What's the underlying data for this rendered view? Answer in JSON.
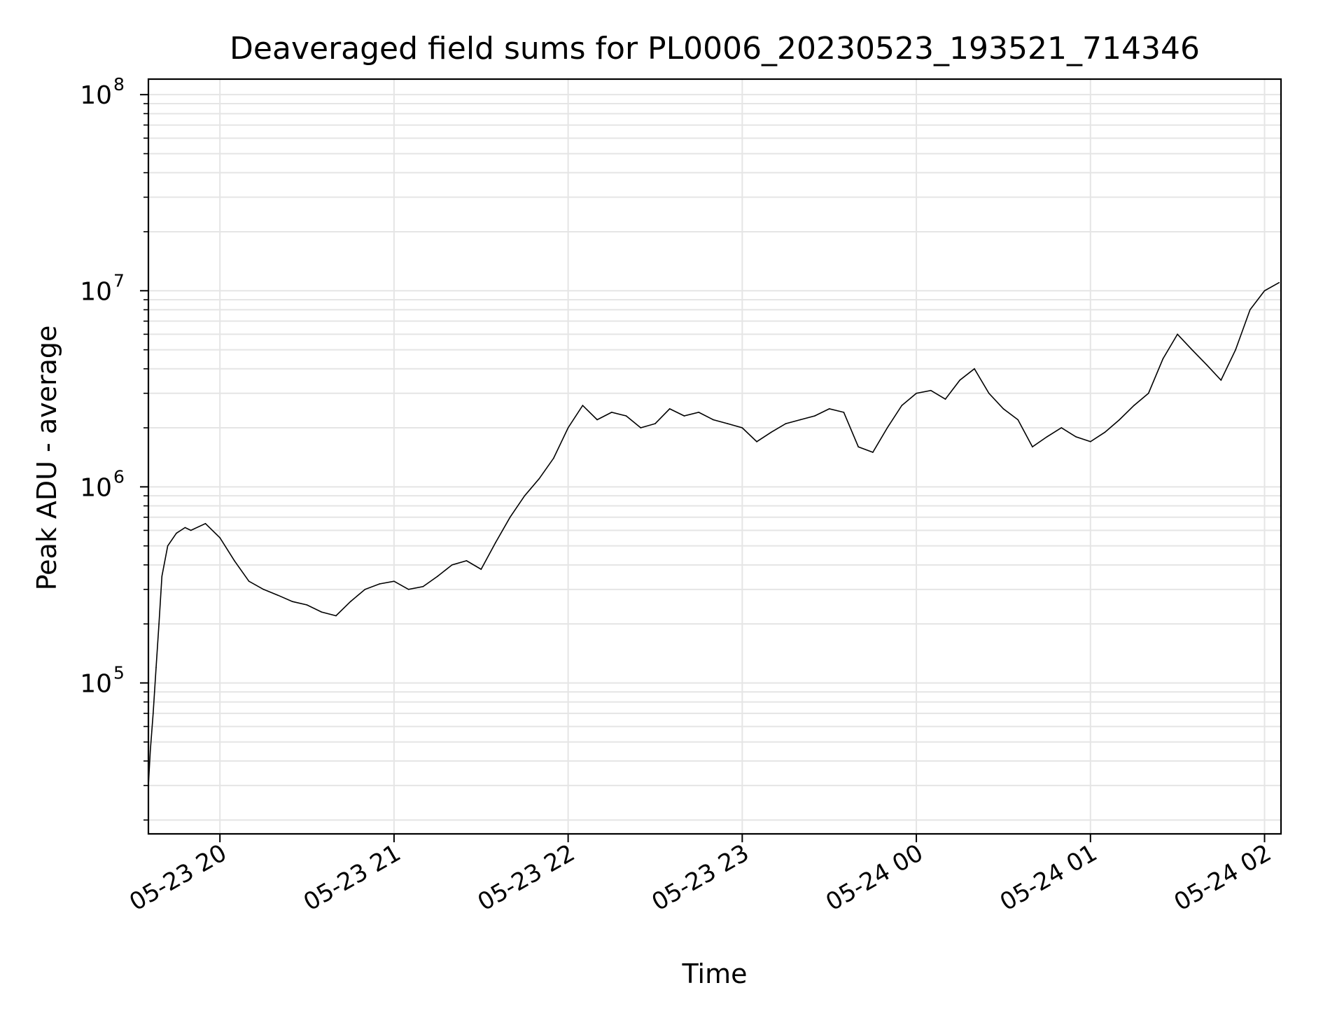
{
  "chart_data": {
    "type": "line",
    "title": "Deaveraged field sums for PL0006_20230523_193521_714346",
    "xlabel": "Time",
    "ylabel": "Peak ADU - average",
    "yscale": "log",
    "ylim": [
      17000,
      120000000
    ],
    "xlim": [
      "2023-05-23 19:35:21",
      "2023-05-24 02:05:40"
    ],
    "grid": true,
    "line_color": "#000000",
    "grid_color": "#e5e5e5",
    "x_ticks": [
      {
        "value": "2023-05-23 20:00:00",
        "label": "05-23 20"
      },
      {
        "value": "2023-05-23 21:00:00",
        "label": "05-23 21"
      },
      {
        "value": "2023-05-23 22:00:00",
        "label": "05-23 22"
      },
      {
        "value": "2023-05-23 23:00:00",
        "label": "05-23 23"
      },
      {
        "value": "2023-05-24 00:00:00",
        "label": "05-24 00"
      },
      {
        "value": "2023-05-24 01:00:00",
        "label": "05-24 01"
      },
      {
        "value": "2023-05-24 02:00:00",
        "label": "05-24 02"
      }
    ],
    "y_ticks": [
      {
        "value": 100000,
        "base": "10",
        "exp": "5"
      },
      {
        "value": 1000000,
        "base": "10",
        "exp": "6"
      },
      {
        "value": 10000000,
        "base": "10",
        "exp": "7"
      },
      {
        "value": 100000000,
        "base": "10",
        "exp": "8"
      }
    ],
    "series": [
      {
        "x": [
          "2023-05-23 19:35:21",
          "2023-05-23 19:36:00",
          "2023-05-23 19:37:00",
          "2023-05-23 19:38:00",
          "2023-05-23 19:39:00",
          "2023-05-23 19:40:00",
          "2023-05-23 19:42:00",
          "2023-05-23 19:45:00",
          "2023-05-23 19:48:00",
          "2023-05-23 19:50:00",
          "2023-05-23 19:55:00",
          "2023-05-23 20:00:00",
          "2023-05-23 20:05:00",
          "2023-05-23 20:10:00",
          "2023-05-23 20:15:00",
          "2023-05-23 20:20:00",
          "2023-05-23 20:25:00",
          "2023-05-23 20:30:00",
          "2023-05-23 20:35:00",
          "2023-05-23 20:40:00",
          "2023-05-23 20:45:00",
          "2023-05-23 20:50:00",
          "2023-05-23 20:55:00",
          "2023-05-23 21:00:00",
          "2023-05-23 21:05:00",
          "2023-05-23 21:10:00",
          "2023-05-23 21:15:00",
          "2023-05-23 21:20:00",
          "2023-05-23 21:25:00",
          "2023-05-23 21:30:00",
          "2023-05-23 21:35:00",
          "2023-05-23 21:40:00",
          "2023-05-23 21:45:00",
          "2023-05-23 21:50:00",
          "2023-05-23 21:55:00",
          "2023-05-23 22:00:00",
          "2023-05-23 22:05:00",
          "2023-05-23 22:10:00",
          "2023-05-23 22:15:00",
          "2023-05-23 22:20:00",
          "2023-05-23 22:25:00",
          "2023-05-23 22:30:00",
          "2023-05-23 22:35:00",
          "2023-05-23 22:40:00",
          "2023-05-23 22:45:00",
          "2023-05-23 22:50:00",
          "2023-05-23 22:55:00",
          "2023-05-23 23:00:00",
          "2023-05-23 23:05:00",
          "2023-05-23 23:10:00",
          "2023-05-23 23:15:00",
          "2023-05-23 23:20:00",
          "2023-05-23 23:25:00",
          "2023-05-23 23:30:00",
          "2023-05-23 23:35:00",
          "2023-05-23 23:40:00",
          "2023-05-23 23:45:00",
          "2023-05-23 23:50:00",
          "2023-05-23 23:55:00",
          "2023-05-24 00:00:00",
          "2023-05-24 00:05:00",
          "2023-05-24 00:10:00",
          "2023-05-24 00:15:00",
          "2023-05-24 00:20:00",
          "2023-05-24 00:25:00",
          "2023-05-24 00:30:00",
          "2023-05-24 00:35:00",
          "2023-05-24 00:40:00",
          "2023-05-24 00:45:00",
          "2023-05-24 00:50:00",
          "2023-05-24 00:55:00",
          "2023-05-24 01:00:00",
          "2023-05-24 01:05:00",
          "2023-05-24 01:10:00",
          "2023-05-24 01:15:00",
          "2023-05-24 01:20:00",
          "2023-05-24 01:25:00",
          "2023-05-24 01:30:00",
          "2023-05-24 01:35:00",
          "2023-05-24 01:40:00",
          "2023-05-24 01:45:00",
          "2023-05-24 01:50:00",
          "2023-05-24 01:55:00",
          "2023-05-24 02:00:00",
          "2023-05-24 02:05:00"
        ],
        "y": [
          30000,
          45000,
          70000,
          120000,
          200000,
          350000,
          500000,
          580000,
          620000,
          600000,
          650000,
          550000,
          420000,
          330000,
          300000,
          280000,
          260000,
          250000,
          230000,
          220000,
          260000,
          300000,
          320000,
          330000,
          300000,
          310000,
          350000,
          400000,
          420000,
          380000,
          520000,
          700000,
          900000,
          1100000,
          1400000,
          2000000,
          2600000,
          2200000,
          2400000,
          2300000,
          2000000,
          2100000,
          2500000,
          2300000,
          2400000,
          2200000,
          2100000,
          2000000,
          1700000,
          1900000,
          2100000,
          2200000,
          2300000,
          2500000,
          2400000,
          1600000,
          1500000,
          2000000,
          2600000,
          3000000,
          3100000,
          2800000,
          3500000,
          4000000,
          3000000,
          2500000,
          2200000,
          1600000,
          1800000,
          2000000,
          1800000,
          1700000,
          1900000,
          2200000,
          2600000,
          3000000,
          4500000,
          6000000,
          5000000,
          4200000,
          3500000,
          5000000,
          8000000,
          10000000,
          11000000
        ]
      }
    ]
  }
}
